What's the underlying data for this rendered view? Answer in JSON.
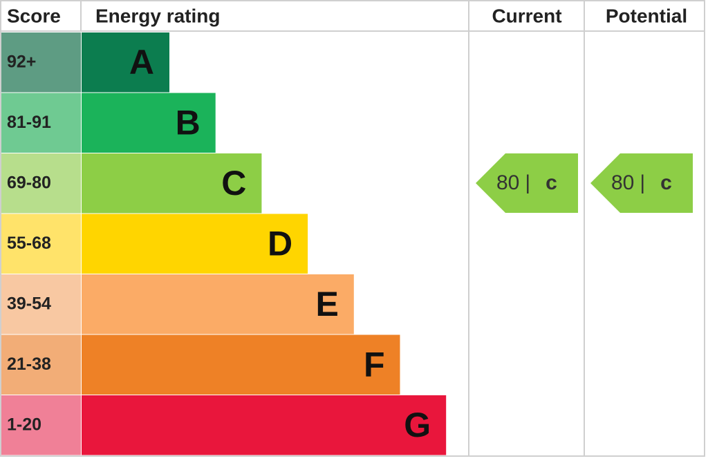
{
  "headers": {
    "score": "Score",
    "rating": "Energy rating",
    "current": "Current",
    "potential": "Potential"
  },
  "rows": [
    {
      "score": "92+",
      "letter": "A",
      "color": "#0c7d4f",
      "score_color": "#5e9c83"
    },
    {
      "score": "81-91",
      "letter": "B",
      "color": "#1bb35a",
      "score_color": "#6fca92"
    },
    {
      "score": "69-80",
      "letter": "C",
      "color": "#8dce46",
      "score_color": "#b7de8c"
    },
    {
      "score": "55-68",
      "letter": "D",
      "color": "#ffd500",
      "score_color": "#ffe36a"
    },
    {
      "score": "39-54",
      "letter": "E",
      "color": "#fbab66",
      "score_color": "#f8c8a2"
    },
    {
      "score": "21-38",
      "letter": "F",
      "color": "#ee8126",
      "score_color": "#f2ad77"
    },
    {
      "score": "1-20",
      "letter": "G",
      "color": "#e9163c",
      "score_color": "#f08097"
    }
  ],
  "current": {
    "value": "80",
    "separator": "|",
    "letter": "c",
    "row": 2
  },
  "potential": {
    "value": "80",
    "separator": "|",
    "letter": "c",
    "row": 2
  }
}
